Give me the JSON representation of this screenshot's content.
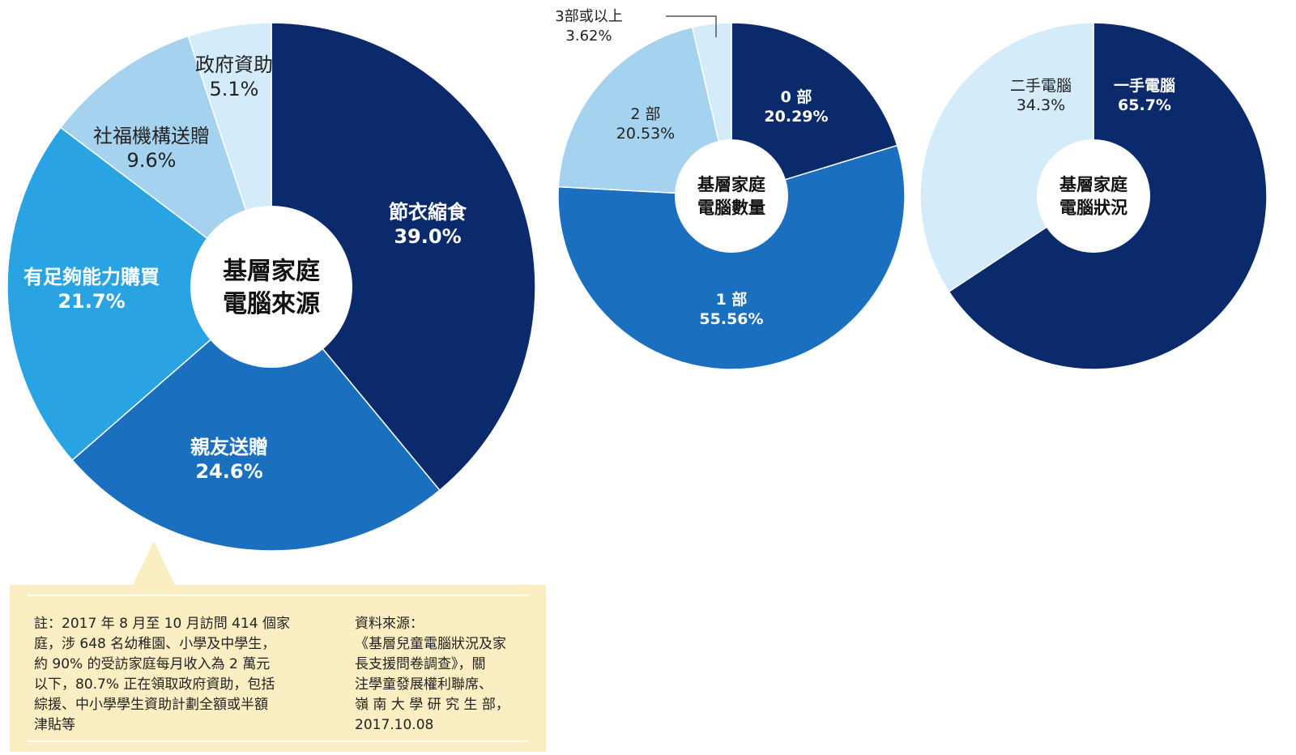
{
  "chart_data": [
    {
      "type": "pie",
      "title": "基層家庭電腦來源",
      "title_lines": [
        "基層家庭",
        "電腦來源"
      ],
      "series": [
        {
          "name": "節衣縮食",
          "value": 39.0,
          "label": "39.0%",
          "color": "#0b2a6b"
        },
        {
          "name": "親友送贈",
          "value": 24.6,
          "label": "24.6%",
          "color": "#1a70bf"
        },
        {
          "name": "有足夠能力購買",
          "value": 21.7,
          "label": "21.7%",
          "color": "#2aa3e3"
        },
        {
          "name": "社福機構送贈",
          "value": 9.6,
          "label": "9.6%",
          "color": "#a5d2ef"
        },
        {
          "name": "政府資助",
          "value": 5.1,
          "label": "5.1%",
          "color": "#d4ebfa"
        }
      ]
    },
    {
      "type": "pie",
      "title": "基層家庭電腦數量",
      "title_lines": [
        "基層家庭",
        "電腦數量"
      ],
      "series": [
        {
          "name": "0 部",
          "value": 20.29,
          "label": "20.29%",
          "color": "#0b2a6b"
        },
        {
          "name": "1 部",
          "value": 55.56,
          "label": "55.56%",
          "color": "#1a70bf"
        },
        {
          "name": "2 部",
          "value": 20.53,
          "label": "20.53%",
          "color": "#a5d2ef"
        },
        {
          "name": "3部或以上",
          "value": 3.62,
          "label": "3.62%",
          "color": "#d4ebfa"
        }
      ]
    },
    {
      "type": "pie",
      "title": "基層家庭電腦狀況",
      "title_lines": [
        "基層家庭",
        "電腦狀況"
      ],
      "series": [
        {
          "name": "一手電腦",
          "value": 65.7,
          "label": "65.7%",
          "color": "#0b2a6b"
        },
        {
          "name": "二手電腦",
          "value": 34.3,
          "label": "34.3%",
          "color": "#d4ebfa"
        }
      ]
    }
  ],
  "notes": {
    "note_lines": [
      "註：2017 年 8 月至 10 月訪問 414 個家",
      "庭，涉 648 名幼稚園、小學及中學生，",
      "約 90% 的受訪家庭每月收入為 2 萬元",
      "以下，80.7% 正在領取政府資助，包括",
      "綜援、中小學學生資助計劃全額或半額",
      "津貼等"
    ],
    "source_lines": [
      "資料來源：",
      "《基層兒童電腦狀況及家",
      "長支援問卷調查》，關",
      "注學童發展權利聯席、",
      "嶺 南 大 學 研 究 生 部，",
      "2017.10.08"
    ]
  }
}
